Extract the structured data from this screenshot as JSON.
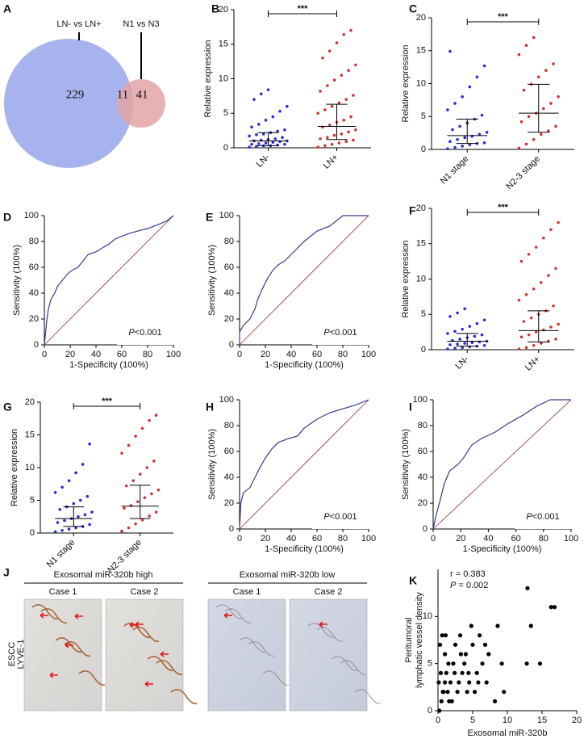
{
  "chart_data": [
    {
      "type": "venn",
      "panel": "A",
      "sets": [
        {
          "name": "LN- vs LN+",
          "color": "#a7b3ee",
          "only": 229
        },
        {
          "name": "N1 vs N3",
          "color": "#e3a4a6",
          "only": 41
        }
      ],
      "overlap": 11
    },
    {
      "type": "dot",
      "panel": "B",
      "ylabel": "Relative expression",
      "ylim": [
        0,
        20
      ],
      "yticks": [
        0,
        5,
        10,
        15,
        20
      ],
      "significance": "***",
      "groups": [
        {
          "name": "LN-",
          "color": "#2b2bd9",
          "median": 1.0,
          "iqr": [
            0.3,
            2.2
          ],
          "values": [
            0.1,
            0.2,
            0.3,
            0.3,
            0.4,
            0.5,
            0.5,
            0.6,
            0.7,
            0.8,
            0.9,
            1.0,
            1.0,
            1.1,
            1.2,
            1.3,
            1.5,
            1.7,
            1.9,
            2.0,
            2.2,
            2.4,
            2.6,
            3.0,
            3.4,
            4.0,
            4.5,
            5.3,
            6.0,
            7.0,
            7.8,
            8.4
          ]
        },
        {
          "name": "LN+",
          "color": "#d43232",
          "median": 3.1,
          "iqr": [
            1.2,
            6.3
          ],
          "values": [
            0.1,
            0.3,
            0.5,
            0.7,
            0.9,
            1.1,
            1.3,
            1.5,
            1.8,
            2.0,
            2.3,
            2.6,
            3.0,
            3.3,
            3.7,
            4.0,
            4.5,
            5.0,
            5.5,
            6.0,
            6.5,
            7.0,
            7.6,
            8.2,
            9.0,
            9.8,
            10.5,
            11.2,
            12.0,
            13.0,
            14.0,
            15.2,
            16.4,
            17.0
          ]
        }
      ]
    },
    {
      "type": "dot",
      "panel": "C",
      "ylabel": "Relative expression",
      "ylim": [
        0,
        20
      ],
      "yticks": [
        0,
        5,
        10,
        15,
        20
      ],
      "significance": "***",
      "groups": [
        {
          "name": "N1 stage",
          "color": "#2b2bd9",
          "median": 2.1,
          "iqr": [
            0.9,
            4.6
          ],
          "values": [
            0.1,
            0.3,
            0.5,
            0.7,
            0.9,
            1.0,
            1.2,
            1.5,
            1.8,
            2.0,
            2.3,
            2.6,
            3.0,
            3.5,
            4.0,
            4.6,
            5.2,
            6.0,
            7.0,
            8.0,
            9.5,
            11.0,
            12.7,
            14.9
          ]
        },
        {
          "name": "N2-3 stage",
          "color": "#d43232",
          "median": 5.5,
          "iqr": [
            2.6,
            9.9
          ],
          "values": [
            0.2,
            0.8,
            1.5,
            2.3,
            2.8,
            3.5,
            4.2,
            5.0,
            5.5,
            6.2,
            7.0,
            8.0,
            9.0,
            9.9,
            11.0,
            12.0,
            13.0,
            14.4,
            15.8,
            17.0
          ]
        }
      ]
    },
    {
      "type": "roc",
      "panel": "D",
      "xlabel": "1-Specificity (100%)",
      "ylabel": "Sensitivity (100%)",
      "xlim": [
        0,
        100
      ],
      "ylim": [
        0,
        100
      ],
      "xticks": [
        0,
        20,
        40,
        60,
        80,
        100
      ],
      "yticks": [
        0,
        20,
        40,
        60,
        80,
        100
      ],
      "color": "#3a3a92",
      "reference_color": "#8b2e3a",
      "p_label": "P",
      "p_value": "<0.001",
      "x": [
        0,
        1,
        2,
        3,
        5,
        8,
        10,
        14,
        18,
        22,
        26,
        30,
        34,
        40,
        45,
        50,
        55,
        60,
        65,
        72,
        80,
        88,
        95,
        100
      ],
      "y": [
        0,
        10,
        20,
        27,
        35,
        40,
        45,
        50,
        55,
        58,
        60,
        65,
        70,
        72,
        75,
        78,
        82,
        84,
        86,
        88,
        90,
        93,
        96,
        100
      ]
    },
    {
      "type": "roc",
      "panel": "E",
      "xlabel": "1-Specificity (100%)",
      "ylabel": "Sensitivity (100%)",
      "xlim": [
        0,
        100
      ],
      "ylim": [
        0,
        100
      ],
      "xticks": [
        0,
        20,
        40,
        60,
        80,
        100
      ],
      "yticks": [
        0,
        20,
        40,
        60,
        80,
        100
      ],
      "color": "#3a3a92",
      "reference_color": "#8b2e3a",
      "p_label": "P",
      "p_value": "<0.001",
      "x": [
        0,
        0,
        3,
        8,
        12,
        14,
        17,
        20,
        22,
        26,
        30,
        35,
        40,
        50,
        60,
        70,
        80,
        100
      ],
      "y": [
        0,
        10,
        15,
        20,
        28,
        35,
        42,
        48,
        52,
        58,
        62,
        65,
        70,
        80,
        88,
        92,
        100,
        100
      ]
    },
    {
      "type": "dot",
      "panel": "F",
      "ylabel": "Relative expression",
      "ylim": [
        0,
        20
      ],
      "yticks": [
        0,
        5,
        10,
        15,
        20
      ],
      "significance": "***",
      "groups": [
        {
          "name": "LN-",
          "color": "#2b2bd9",
          "median": 1.2,
          "iqr": [
            0.5,
            2.3
          ],
          "values": [
            0.1,
            0.2,
            0.3,
            0.4,
            0.5,
            0.6,
            0.7,
            0.8,
            0.9,
            1.0,
            1.1,
            1.2,
            1.3,
            1.5,
            1.7,
            1.9,
            2.1,
            2.3,
            2.6,
            2.9,
            3.3,
            3.7,
            4.2,
            4.7,
            5.2,
            5.8
          ]
        },
        {
          "name": "LN+",
          "color": "#d43232",
          "median": 2.7,
          "iqr": [
            1.1,
            5.5
          ],
          "values": [
            0.1,
            0.3,
            0.6,
            0.9,
            1.2,
            1.5,
            1.8,
            2.1,
            2.5,
            2.8,
            3.2,
            3.6,
            4.0,
            4.5,
            5.0,
            5.5,
            6.2,
            7.0,
            7.8,
            8.6,
            9.5,
            10.5,
            11.5,
            12.5,
            13.5,
            14.5,
            15.8,
            17.0,
            18.0
          ]
        }
      ]
    },
    {
      "type": "dot",
      "panel": "G",
      "ylabel": "Relative expression",
      "ylim": [
        0,
        20
      ],
      "yticks": [
        0,
        5,
        10,
        15,
        20
      ],
      "significance": "***",
      "groups": [
        {
          "name": "N1 stage",
          "color": "#2b2bd9",
          "median": 2.2,
          "iqr": [
            1.0,
            4.0
          ],
          "values": [
            0.2,
            0.4,
            0.6,
            0.8,
            1.0,
            1.3,
            1.6,
            1.9,
            2.2,
            2.5,
            2.8,
            3.2,
            3.6,
            4.0,
            4.5,
            5.0,
            5.6,
            6.2,
            7.0,
            8.0,
            9.2,
            10.5,
            13.6
          ]
        },
        {
          "name": "N2-3 stage",
          "color": "#d43232",
          "median": 4.1,
          "iqr": [
            2.2,
            7.3
          ],
          "values": [
            0.3,
            0.8,
            1.4,
            2.0,
            2.6,
            3.2,
            3.8,
            4.2,
            4.8,
            5.4,
            6.0,
            6.6,
            7.2,
            8.0,
            9.0,
            10.0,
            11.0,
            12.2,
            13.4,
            14.8,
            16.0,
            17.2,
            18.0
          ]
        }
      ]
    },
    {
      "type": "roc",
      "panel": "H",
      "xlabel": "1-Specificity (100%)",
      "ylabel": "Sensitivity (100%)",
      "xlim": [
        0,
        100
      ],
      "ylim": [
        0,
        100
      ],
      "xticks": [
        0,
        20,
        40,
        60,
        80,
        100
      ],
      "yticks": [
        0,
        20,
        40,
        60,
        80,
        100
      ],
      "color": "#3a3a92",
      "reference_color": "#8b2e3a",
      "p_label": "P",
      "p_value": "<0.001",
      "x": [
        0,
        1,
        3,
        8,
        12,
        16,
        20,
        25,
        30,
        38,
        45,
        50,
        60,
        70,
        80,
        90,
        100
      ],
      "y": [
        0,
        20,
        28,
        32,
        40,
        48,
        55,
        62,
        67,
        70,
        72,
        78,
        85,
        90,
        93,
        96,
        100
      ]
    },
    {
      "type": "roc",
      "panel": "I",
      "xlabel": "1-Specificity (100%)",
      "ylabel": "Sensitivity (100%)",
      "xlim": [
        0,
        100
      ],
      "ylim": [
        0,
        100
      ],
      "xticks": [
        0,
        20,
        40,
        60,
        80,
        100
      ],
      "yticks": [
        0,
        20,
        40,
        60,
        80,
        100
      ],
      "color": "#3a3a92",
      "reference_color": "#8b2e3a",
      "p_label": "P",
      "p_value": "<0.001",
      "x": [
        0,
        2,
        5,
        8,
        12,
        18,
        22,
        28,
        35,
        45,
        55,
        65,
        75,
        85,
        100
      ],
      "y": [
        0,
        10,
        22,
        35,
        45,
        50,
        55,
        65,
        70,
        75,
        82,
        88,
        95,
        100,
        100
      ]
    },
    {
      "type": "scatter",
      "panel": "K",
      "xlabel": "Exosomal miR-320b",
      "ylabel": [
        "Peritumoral",
        "lymphatic vessel density"
      ],
      "xlim": [
        0,
        20
      ],
      "ylim": [
        0,
        15
      ],
      "xticks": [
        0,
        5,
        10,
        15,
        20
      ],
      "yticks": [
        0,
        5,
        10
      ],
      "color": "#000000",
      "r_text": "r = 0.383",
      "p_label": "P",
      "p_text": " = 0.002",
      "x": [
        0.2,
        0.5,
        0.8,
        1,
        1.2,
        1.5,
        0.3,
        0.6,
        1,
        1.4,
        1.8,
        2,
        2.2,
        2.5,
        2.8,
        3,
        3.2,
        3.5,
        3.8,
        4,
        4.2,
        4.5,
        4.8,
        5,
        5.3,
        5.6,
        6,
        6.4,
        7,
        7.3,
        8.2,
        8.6,
        9.2,
        9.5,
        12.9,
        12.8,
        13.4,
        14.7,
        16.3,
        16.8,
        0.1,
        0.4,
        0.7,
        1.1,
        1.6,
        2.4,
        3.3,
        4.4,
        5.8,
        6.8
      ],
      "y": [
        0,
        1,
        2,
        3,
        4,
        5,
        7,
        8,
        6,
        2,
        3,
        1,
        5,
        7,
        2,
        3,
        8,
        4,
        5,
        6,
        2,
        3,
        9,
        7,
        2,
        4,
        8,
        5,
        3,
        6,
        1,
        9,
        5,
        2,
        13,
        5,
        9,
        5,
        11,
        11,
        3,
        4,
        2,
        8,
        1,
        4,
        6,
        4,
        3,
        7
      ]
    }
  ],
  "panel_j": {
    "panel": "J",
    "row_label": [
      "ESCC",
      "LYVE-1"
    ],
    "groups": [
      {
        "title": "Exosomal miR-320b high",
        "cases": [
          "Case 1",
          "Case 2"
        ]
      },
      {
        "title": "Exosomal miR-320b low",
        "cases": [
          "Case 1",
          "Case 2"
        ]
      }
    ]
  }
}
